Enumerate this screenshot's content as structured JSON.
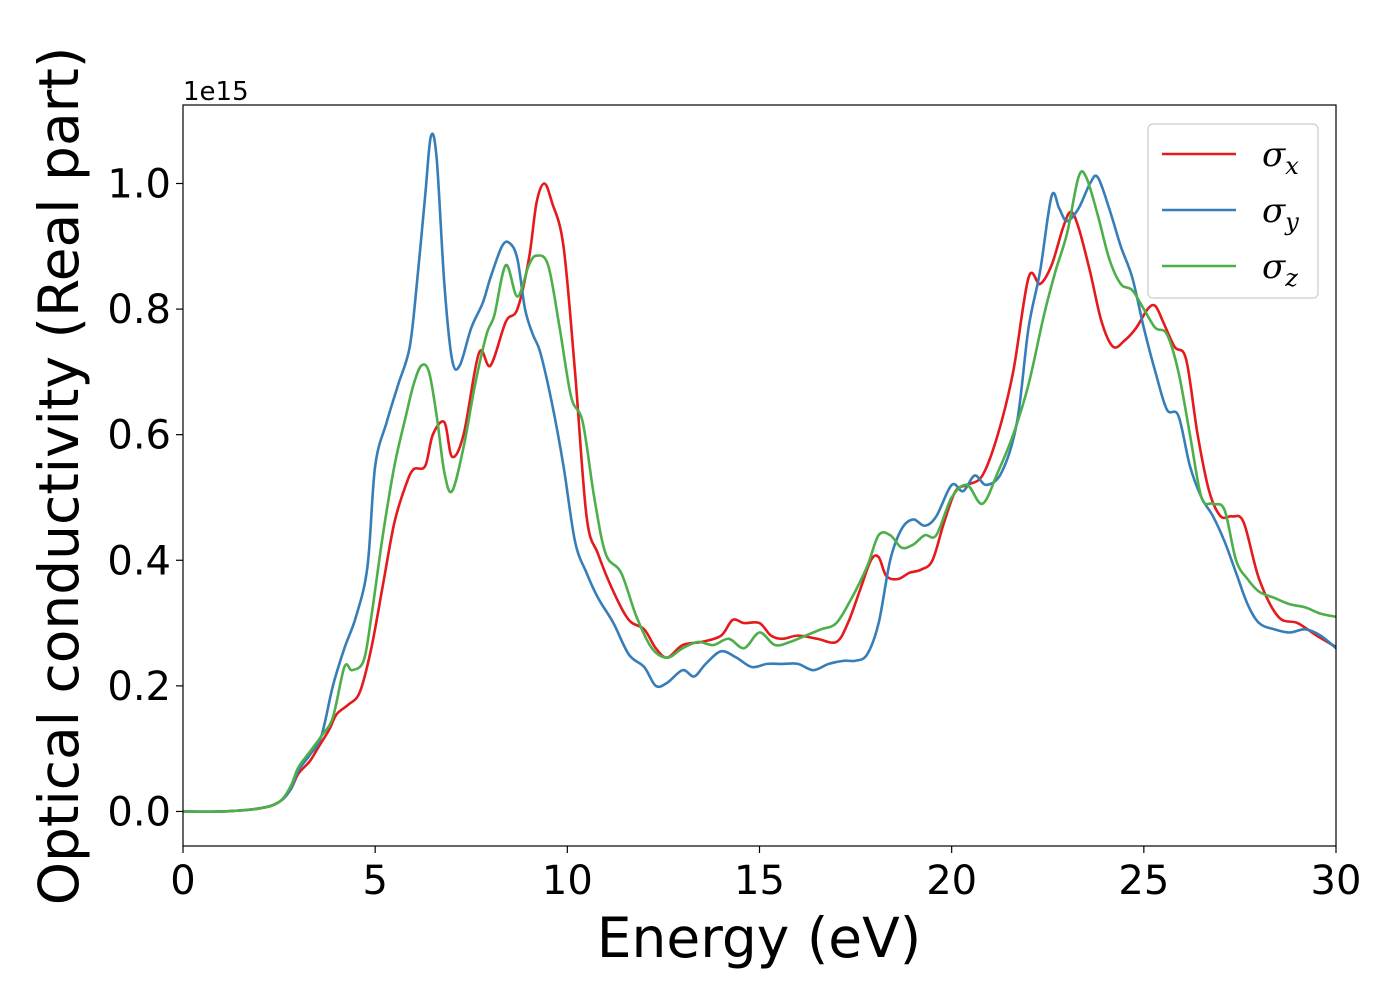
{
  "chart_data": {
    "type": "line",
    "xlabel": "Energy (eV)",
    "ylabel": "Optical conductivity (Real part)",
    "y_offset_label": "1e15",
    "xlim": [
      0,
      30
    ],
    "ylim": [
      -0.055,
      1.125
    ],
    "x_ticks": [
      0,
      5,
      10,
      15,
      20,
      25,
      30
    ],
    "y_ticks": [
      0.0,
      0.2,
      0.4,
      0.6,
      0.8,
      1.0
    ],
    "x_tick_labels": [
      "0",
      "5",
      "10",
      "15",
      "20",
      "25",
      "30"
    ],
    "y_tick_labels": [
      "0.0",
      "0.2",
      "0.4",
      "0.6",
      "0.8",
      "1.0"
    ],
    "grid": false,
    "legend_position": "top-right",
    "series": [
      {
        "name": "σx",
        "symbol": "σ",
        "subscript": "x",
        "color": "#e41a1c",
        "x": [
          0,
          1,
          2,
          2.5,
          2.8,
          3.0,
          3.3,
          3.5,
          3.8,
          4.0,
          4.3,
          4.6,
          4.9,
          5.2,
          5.5,
          5.8,
          6.0,
          6.3,
          6.5,
          6.8,
          7.0,
          7.3,
          7.7,
          8.0,
          8.4,
          8.7,
          9.0,
          9.2,
          9.4,
          9.6,
          9.9,
          10.2,
          10.5,
          10.8,
          11.2,
          11.6,
          12.0,
          12.3,
          12.6,
          13.0,
          13.5,
          14.0,
          14.3,
          14.6,
          15.0,
          15.3,
          15.6,
          16.0,
          16.5,
          17.0,
          17.3,
          17.6,
          17.9,
          18.1,
          18.3,
          18.6,
          18.9,
          19.2,
          19.5,
          19.8,
          20.1,
          20.4,
          20.8,
          21.2,
          21.6,
          22.0,
          22.3,
          22.6,
          22.9,
          23.1,
          23.3,
          23.6,
          23.9,
          24.2,
          24.5,
          24.8,
          25.1,
          25.3,
          25.5,
          25.8,
          26.1,
          26.4,
          26.7,
          27.0,
          27.3,
          27.6,
          28.0,
          28.5,
          29.0,
          29.5,
          30.0
        ],
        "values": [
          0.0,
          0.0,
          0.005,
          0.015,
          0.035,
          0.06,
          0.08,
          0.1,
          0.13,
          0.155,
          0.17,
          0.19,
          0.26,
          0.36,
          0.46,
          0.52,
          0.545,
          0.55,
          0.6,
          0.62,
          0.565,
          0.6,
          0.73,
          0.71,
          0.78,
          0.8,
          0.88,
          0.97,
          1.0,
          0.97,
          0.9,
          0.7,
          0.47,
          0.41,
          0.35,
          0.305,
          0.29,
          0.26,
          0.245,
          0.265,
          0.27,
          0.28,
          0.305,
          0.3,
          0.3,
          0.28,
          0.275,
          0.28,
          0.275,
          0.27,
          0.3,
          0.35,
          0.4,
          0.405,
          0.375,
          0.37,
          0.38,
          0.385,
          0.4,
          0.46,
          0.51,
          0.52,
          0.535,
          0.6,
          0.7,
          0.85,
          0.84,
          0.87,
          0.93,
          0.955,
          0.93,
          0.86,
          0.78,
          0.74,
          0.75,
          0.77,
          0.8,
          0.805,
          0.78,
          0.74,
          0.72,
          0.6,
          0.51,
          0.47,
          0.47,
          0.46,
          0.37,
          0.31,
          0.3,
          0.28,
          0.262
        ]
      },
      {
        "name": "σy",
        "symbol": "σ",
        "subscript": "y",
        "color": "#377eb8",
        "x": [
          0,
          1,
          2,
          2.5,
          2.8,
          3.0,
          3.3,
          3.6,
          3.9,
          4.2,
          4.5,
          4.8,
          5.0,
          5.3,
          5.6,
          5.9,
          6.1,
          6.3,
          6.45,
          6.6,
          6.8,
          7.0,
          7.2,
          7.5,
          7.8,
          8.0,
          8.3,
          8.5,
          8.7,
          8.9,
          9.1,
          9.3,
          9.6,
          9.9,
          10.2,
          10.5,
          10.8,
          11.2,
          11.6,
          12.0,
          12.3,
          12.6,
          13.0,
          13.3,
          13.6,
          14.0,
          14.4,
          14.8,
          15.2,
          15.6,
          16.0,
          16.4,
          16.8,
          17.2,
          17.5,
          17.8,
          18.1,
          18.4,
          18.7,
          19.0,
          19.3,
          19.6,
          20.0,
          20.3,
          20.6,
          20.9,
          21.3,
          21.7,
          22.0,
          22.3,
          22.6,
          22.8,
          23.0,
          23.3,
          23.6,
          23.8,
          24.1,
          24.4,
          24.7,
          25.0,
          25.3,
          25.6,
          25.9,
          26.2,
          26.5,
          26.8,
          27.1,
          27.4,
          27.7,
          28.0,
          28.4,
          28.8,
          29.2,
          29.6,
          30.0
        ],
        "values": [
          0.0,
          0.0,
          0.005,
          0.015,
          0.035,
          0.065,
          0.09,
          0.12,
          0.2,
          0.26,
          0.31,
          0.39,
          0.55,
          0.62,
          0.68,
          0.74,
          0.85,
          0.98,
          1.075,
          1.04,
          0.84,
          0.72,
          0.71,
          0.77,
          0.81,
          0.85,
          0.9,
          0.905,
          0.88,
          0.8,
          0.76,
          0.73,
          0.65,
          0.55,
          0.43,
          0.38,
          0.34,
          0.3,
          0.25,
          0.23,
          0.2,
          0.205,
          0.225,
          0.215,
          0.235,
          0.255,
          0.245,
          0.23,
          0.235,
          0.235,
          0.235,
          0.225,
          0.235,
          0.24,
          0.24,
          0.25,
          0.3,
          0.4,
          0.45,
          0.465,
          0.455,
          0.47,
          0.52,
          0.51,
          0.535,
          0.52,
          0.54,
          0.62,
          0.77,
          0.86,
          0.98,
          0.96,
          0.94,
          0.96,
          1.0,
          1.01,
          0.96,
          0.9,
          0.85,
          0.77,
          0.7,
          0.64,
          0.63,
          0.55,
          0.5,
          0.47,
          0.43,
          0.38,
          0.33,
          0.3,
          0.29,
          0.285,
          0.29,
          0.28,
          0.26
        ]
      },
      {
        "name": "σz",
        "symbol": "σ",
        "subscript": "z",
        "color": "#4daf4a",
        "x": [
          0,
          1,
          2,
          2.5,
          2.8,
          3.0,
          3.3,
          3.6,
          3.9,
          4.2,
          4.4,
          4.7,
          4.9,
          5.2,
          5.5,
          5.8,
          6.0,
          6.2,
          6.4,
          6.6,
          6.8,
          7.0,
          7.3,
          7.6,
          7.9,
          8.1,
          8.4,
          8.7,
          9.0,
          9.2,
          9.5,
          9.8,
          10.1,
          10.4,
          10.7,
          11.0,
          11.4,
          11.8,
          12.2,
          12.6,
          13.0,
          13.4,
          13.8,
          14.2,
          14.6,
          15.0,
          15.4,
          15.8,
          16.2,
          16.6,
          17.0,
          17.4,
          17.8,
          18.1,
          18.4,
          18.7,
          19.0,
          19.3,
          19.6,
          20.0,
          20.4,
          20.8,
          21.2,
          21.6,
          22.0,
          22.4,
          22.7,
          23.0,
          23.3,
          23.5,
          23.8,
          24.1,
          24.4,
          24.7,
          25.0,
          25.3,
          25.6,
          25.9,
          26.2,
          26.5,
          26.8,
          27.1,
          27.4,
          27.7,
          28.0,
          28.4,
          28.8,
          29.2,
          29.6,
          30.0
        ],
        "values": [
          0.0,
          0.0,
          0.005,
          0.015,
          0.04,
          0.07,
          0.095,
          0.12,
          0.15,
          0.23,
          0.225,
          0.24,
          0.31,
          0.44,
          0.55,
          0.63,
          0.68,
          0.71,
          0.7,
          0.63,
          0.54,
          0.51,
          0.58,
          0.68,
          0.76,
          0.79,
          0.87,
          0.82,
          0.87,
          0.885,
          0.87,
          0.77,
          0.66,
          0.62,
          0.5,
          0.41,
          0.38,
          0.31,
          0.26,
          0.245,
          0.26,
          0.27,
          0.265,
          0.275,
          0.26,
          0.285,
          0.265,
          0.27,
          0.28,
          0.29,
          0.3,
          0.34,
          0.39,
          0.44,
          0.44,
          0.42,
          0.425,
          0.44,
          0.44,
          0.5,
          0.52,
          0.49,
          0.54,
          0.6,
          0.68,
          0.79,
          0.86,
          0.92,
          1.01,
          1.01,
          0.95,
          0.88,
          0.84,
          0.83,
          0.8,
          0.77,
          0.76,
          0.7,
          0.6,
          0.5,
          0.49,
          0.48,
          0.4,
          0.37,
          0.35,
          0.34,
          0.33,
          0.325,
          0.315,
          0.31
        ]
      }
    ]
  }
}
